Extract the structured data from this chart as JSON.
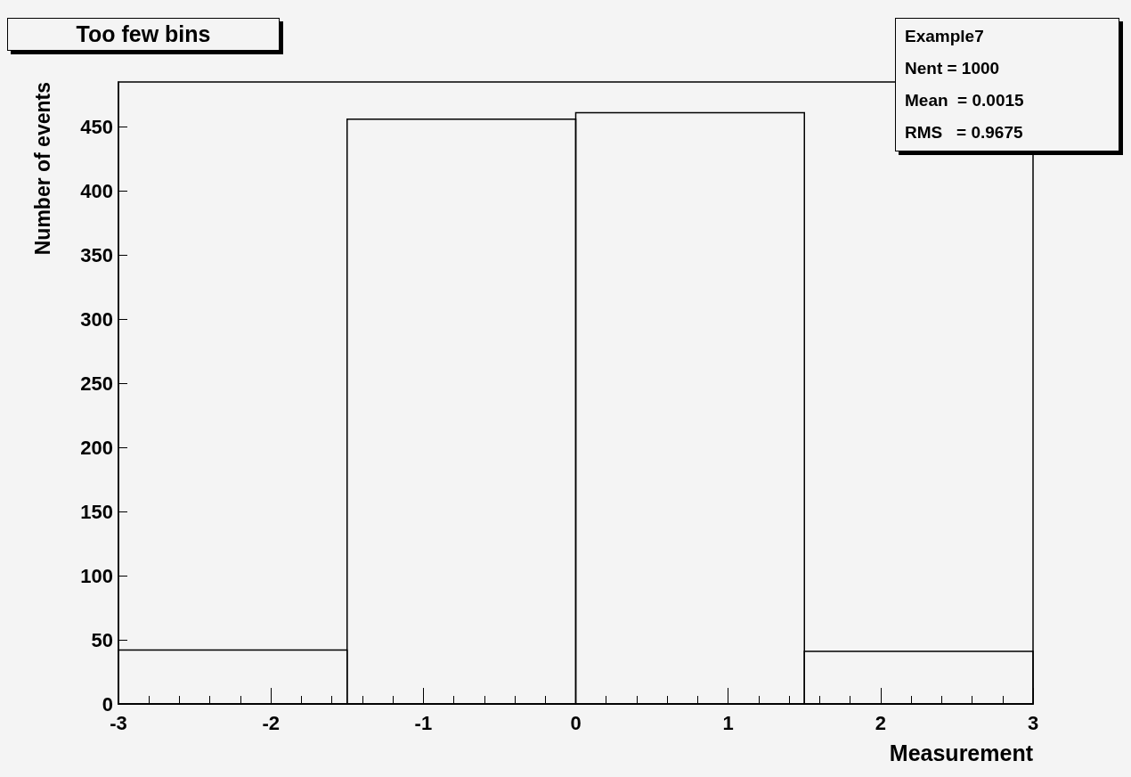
{
  "chart_data": {
    "type": "histogram",
    "title": "Too few bins",
    "xlabel": "Measurement",
    "ylabel": "Number of events",
    "bins": [
      -3,
      -1.5,
      0,
      1.5,
      3
    ],
    "values": [
      42,
      456,
      461,
      41
    ],
    "color": "#000000",
    "xlim": [
      -3,
      3
    ],
    "xticks": [
      -3,
      -2,
      -1,
      0,
      1,
      2,
      3
    ],
    "ylim": [
      0,
      485
    ],
    "yticks": [
      0,
      50,
      100,
      150,
      200,
      250,
      300,
      350,
      400,
      450
    ],
    "grid": false,
    "annotations": [
      "Example7",
      "Nent = 1000",
      "Mean  = 0.0015",
      "RMS   = 0.9675"
    ]
  }
}
